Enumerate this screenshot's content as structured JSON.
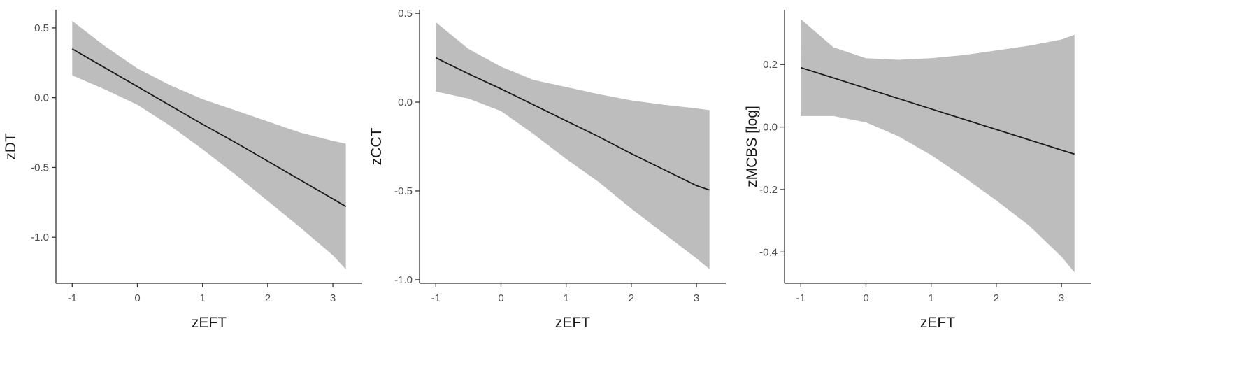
{
  "chart_data": [
    {
      "type": "line",
      "title": "",
      "xlabel": "zEFT",
      "ylabel": "zDT",
      "xlim": [
        -1.25,
        3.45
      ],
      "ylim": [
        -1.33,
        0.63
      ],
      "xticks": [
        -1,
        0,
        1,
        2,
        3
      ],
      "xtick_labels": [
        "-1",
        "0",
        "1",
        "2",
        "3"
      ],
      "yticks": [
        -1.0,
        -0.5,
        0.0,
        0.5
      ],
      "ytick_labels": [
        "-1.0",
        "-0.5",
        "0.0",
        "0.5"
      ],
      "grid": false,
      "legend": "none",
      "line_color": "#1a1a1a",
      "band_color": "#bdbdbd",
      "series": [
        {
          "x": [
            -1,
            -0.5,
            0,
            0.5,
            1,
            1.5,
            2,
            2.5,
            3,
            3.2
          ],
          "y": [
            0.35,
            0.215,
            0.08,
            -0.055,
            -0.19,
            -0.32,
            -0.455,
            -0.59,
            -0.725,
            -0.78
          ],
          "lower": [
            0.16,
            0.06,
            -0.05,
            -0.2,
            -0.37,
            -0.55,
            -0.74,
            -0.93,
            -1.13,
            -1.23
          ],
          "upper": [
            0.55,
            0.37,
            0.21,
            0.09,
            -0.01,
            -0.09,
            -0.17,
            -0.25,
            -0.31,
            -0.33
          ]
        }
      ]
    },
    {
      "type": "line",
      "title": "",
      "xlabel": "zEFT",
      "ylabel": "zCCT",
      "xlim": [
        -1.25,
        3.45
      ],
      "ylim": [
        -1.02,
        0.52
      ],
      "xticks": [
        -1,
        0,
        1,
        2,
        3
      ],
      "xtick_labels": [
        "-1",
        "0",
        "1",
        "2",
        "3"
      ],
      "yticks": [
        -1.0,
        -0.5,
        0.0,
        0.5
      ],
      "ytick_labels": [
        "-1.0",
        "-0.5",
        "0.0",
        "0.5"
      ],
      "grid": false,
      "legend": "none",
      "line_color": "#1a1a1a",
      "band_color": "#bdbdbd",
      "series": [
        {
          "x": [
            -1,
            -0.5,
            0,
            0.5,
            1,
            1.5,
            2,
            2.5,
            3,
            3.2
          ],
          "y": [
            0.25,
            0.16,
            0.075,
            -0.015,
            -0.105,
            -0.195,
            -0.29,
            -0.38,
            -0.47,
            -0.495
          ],
          "lower": [
            0.06,
            0.02,
            -0.05,
            -0.18,
            -0.32,
            -0.45,
            -0.6,
            -0.74,
            -0.88,
            -0.94
          ],
          "upper": [
            0.45,
            0.3,
            0.2,
            0.125,
            0.085,
            0.045,
            0.01,
            -0.015,
            -0.035,
            -0.045
          ]
        }
      ]
    },
    {
      "type": "line",
      "title": "",
      "xlabel": "zEFT",
      "ylabel": "zMCBS [log]",
      "xlim": [
        -1.25,
        3.45
      ],
      "ylim": [
        -0.5,
        0.375
      ],
      "xticks": [
        -1,
        0,
        1,
        2,
        3
      ],
      "xtick_labels": [
        "-1",
        "0",
        "1",
        "2",
        "3"
      ],
      "yticks": [
        -0.4,
        -0.2,
        0.0,
        0.2
      ],
      "ytick_labels": [
        "-0.4",
        "-0.2",
        "0.0",
        "0.2"
      ],
      "grid": false,
      "legend": "none",
      "line_color": "#1a1a1a",
      "band_color": "#bdbdbd",
      "series": [
        {
          "x": [
            -1,
            -0.5,
            0,
            0.5,
            1,
            1.5,
            2,
            2.5,
            3,
            3.2
          ],
          "y": [
            0.19,
            0.157,
            0.124,
            0.091,
            0.058,
            0.025,
            -0.008,
            -0.041,
            -0.074,
            -0.087
          ],
          "lower": [
            0.035,
            0.035,
            0.015,
            -0.03,
            -0.09,
            -0.16,
            -0.235,
            -0.315,
            -0.415,
            -0.465
          ],
          "upper": [
            0.345,
            0.255,
            0.22,
            0.215,
            0.22,
            0.23,
            0.245,
            0.26,
            0.28,
            0.295
          ]
        }
      ]
    }
  ]
}
